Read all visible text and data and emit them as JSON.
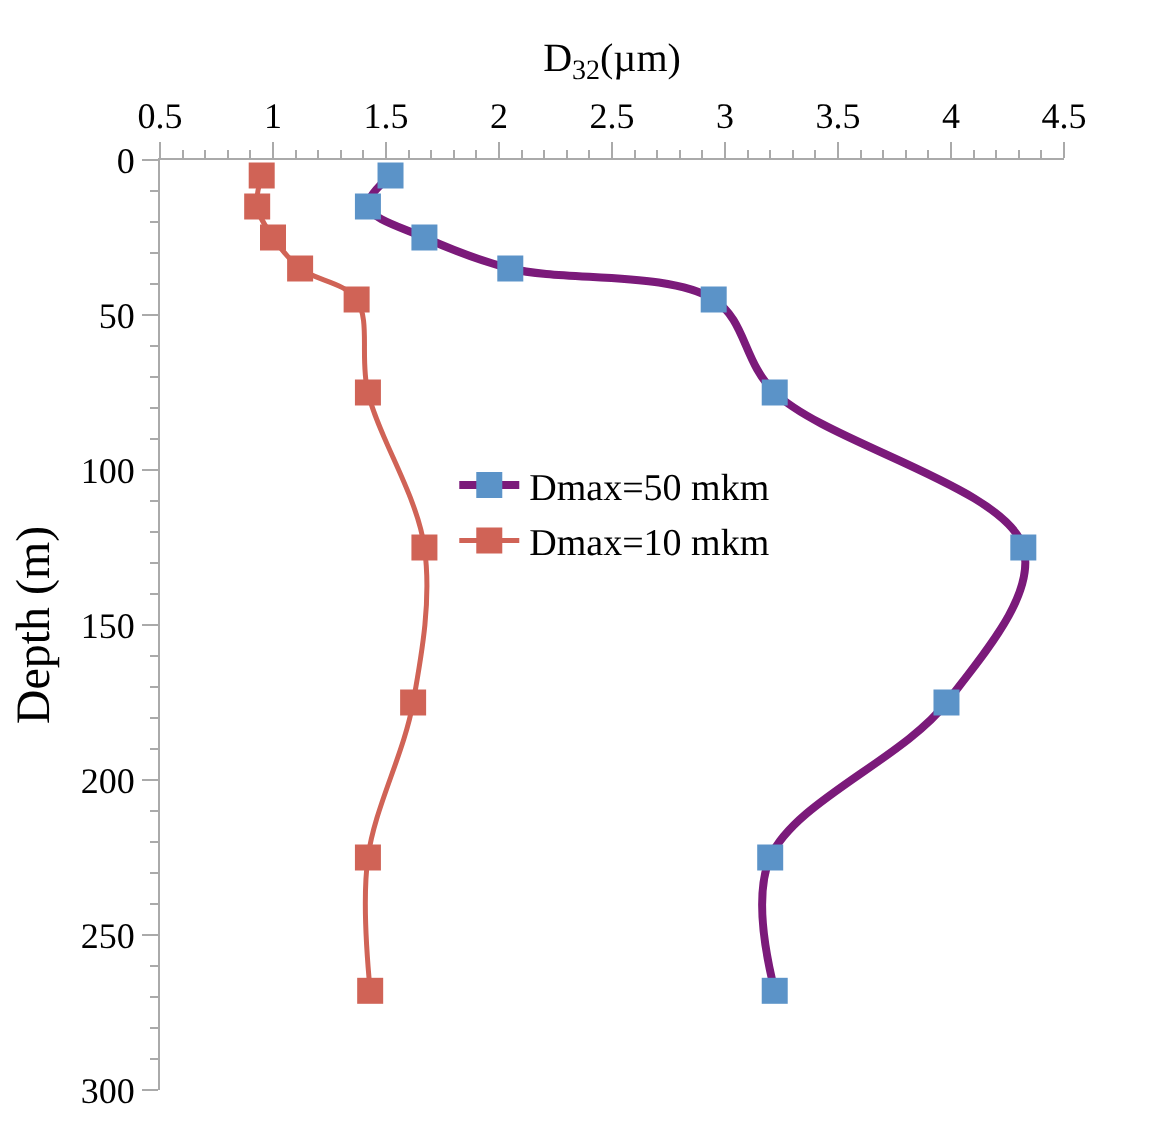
{
  "chart_data": {
    "type": "line",
    "xlabel": "D$_{32}$(µm)",
    "ylabel": "Depth (m)",
    "xlim": [
      0.5,
      4.5
    ],
    "xticks": [
      0.5,
      1,
      1.5,
      2,
      2.5,
      3,
      3.5,
      4,
      4.5
    ],
    "ylim": [
      300,
      0
    ],
    "yticks": [
      0,
      50,
      100,
      150,
      200,
      250,
      300
    ],
    "grid": false,
    "legend": "center",
    "marker": "square",
    "line_style": "solid",
    "series": [
      {
        "name": "Dmax=50 mkm",
        "color": "#7b1a7a",
        "colors": [
          "#5b93c8",
          "#5b93c8",
          "#5b93c8",
          "#5b93c8",
          "#5b93c8",
          "#5b93c8",
          "#5b93c8",
          "#5b93c8",
          "#5b93c8",
          "#5b93c8"
        ],
        "x": [
          1.52,
          1.42,
          1.67,
          2.05,
          2.95,
          3.22,
          4.32,
          3.98,
          3.2,
          3.22
        ],
        "values": [
          5,
          15,
          25,
          35,
          45,
          75,
          125,
          175,
          225,
          268
        ]
      },
      {
        "name": "Dmax=10 mkm",
        "color": "#d06356",
        "x": [
          0.95,
          0.93,
          1.0,
          1.12,
          1.37,
          1.42,
          1.67,
          1.62,
          1.42,
          1.43
        ],
        "values": [
          5,
          15,
          25,
          35,
          45,
          75,
          125,
          175,
          225,
          268
        ]
      }
    ]
  }
}
